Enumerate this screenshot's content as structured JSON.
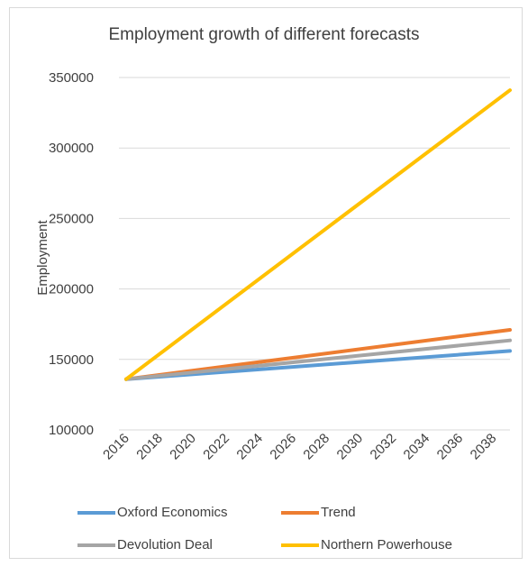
{
  "chart_data": {
    "type": "line",
    "title": "Employment growth of different forecasts",
    "xlabel": "",
    "ylabel": "Employment",
    "x": [
      2016,
      2017,
      2018,
      2019,
      2020,
      2021,
      2022,
      2023,
      2024,
      2025,
      2026,
      2027,
      2028,
      2029,
      2030,
      2031,
      2032,
      2033,
      2034,
      2035,
      2036,
      2037,
      2038,
      2039
    ],
    "x_ticks": [
      "2016",
      "2018",
      "2020",
      "2022",
      "2024",
      "2026",
      "2028",
      "2030",
      "2032",
      "2034",
      "2036",
      "2038"
    ],
    "y_ticks": [
      "100000",
      "150000",
      "200000",
      "250000",
      "300000",
      "350000"
    ],
    "ylim": [
      100000,
      350000
    ],
    "grid": true,
    "legend_placement": "bottom",
    "series": [
      {
        "name": "Oxford Economics",
        "color": "#5b9bd5",
        "start": 136000,
        "end": 156000
      },
      {
        "name": "Trend",
        "color": "#ed7d31",
        "start": 136000,
        "end": 171000
      },
      {
        "name": "Devolution Deal",
        "color": "#a5a5a5",
        "start": 136000,
        "end": 163500
      },
      {
        "name": "Northern Powerhouse",
        "color": "#ffc000",
        "start": 136000,
        "end": 341000
      }
    ]
  }
}
